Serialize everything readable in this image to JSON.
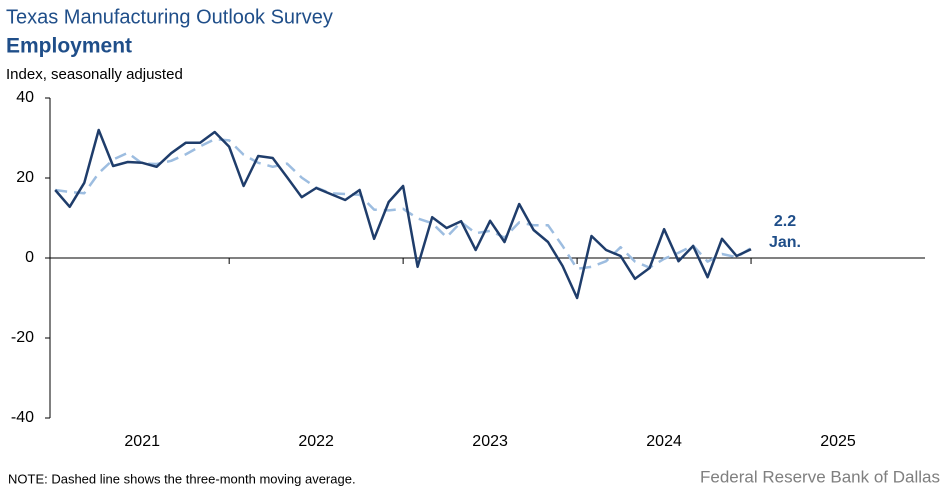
{
  "chart_data": {
    "type": "line",
    "title": "Texas Manufacturing Outlook Survey",
    "subtitle": "Employment",
    "y_label": "Index, seasonally adjusted",
    "note": "NOTE: Dashed line shows the three-month  moving average.",
    "source": "Federal Reserve Bank of Dallas",
    "annotations": [
      "2.2",
      "Jan."
    ],
    "x": [
      2021.0,
      2021.083,
      2021.167,
      2021.25,
      2021.333,
      2021.417,
      2021.5,
      2021.583,
      2021.667,
      2021.75,
      2021.833,
      2021.917,
      2022.0,
      2022.083,
      2022.167,
      2022.25,
      2022.333,
      2022.417,
      2022.5,
      2022.583,
      2022.667,
      2022.75,
      2022.833,
      2022.917,
      2023.0,
      2023.083,
      2023.167,
      2023.25,
      2023.333,
      2023.417,
      2023.5,
      2023.583,
      2023.667,
      2023.75,
      2023.833,
      2023.917,
      2024.0,
      2024.083,
      2024.167,
      2024.25,
      2024.333,
      2024.417,
      2024.5,
      2024.583,
      2024.667,
      2024.75,
      2024.833,
      2024.917,
      2025.0
    ],
    "series": [
      {
        "name": "Index",
        "color": "#1f3d6b",
        "dashed": false,
        "values": [
          17,
          12.8,
          18.8,
          32,
          23,
          24,
          23.8,
          22.8,
          26.2,
          28.8,
          28.8,
          31.5,
          27.8,
          18,
          25.5,
          25,
          20.2,
          15.2,
          17.5,
          16,
          14.5,
          17,
          4.8,
          14,
          18,
          -2.2,
          10.2,
          7.5,
          9.2,
          2,
          9.3,
          4,
          13.5,
          7,
          4,
          -2,
          -10,
          5.5,
          2,
          0.5,
          -5.2,
          -2.5,
          7.2,
          -0.8,
          3,
          -4.8,
          4.8,
          0.5,
          2.2
        ]
      },
      {
        "name": "Three-month moving average",
        "color": "#9dbde0",
        "dashed": true,
        "values": [
          17,
          16.5,
          16.2,
          21.2,
          24.6,
          26.3,
          23.6,
          23.5,
          24.3,
          25.9,
          27.9,
          29.7,
          29.4,
          25.8,
          23.8,
          22.8,
          23.6,
          20.1,
          17.6,
          16.2,
          16,
          15.8,
          12.1,
          11.9,
          12.3,
          9.9,
          8.7,
          5.2,
          9,
          6.2,
          6.8,
          5.1,
          8.9,
          8.2,
          8.2,
          3,
          -2.7,
          -2.2,
          -0.8,
          2.7,
          -0.9,
          -2.4,
          -0.2,
          1.3,
          3.1,
          -0.9,
          1,
          0.2,
          2.5
        ]
      }
    ],
    "xlim": [
      2020.97,
      2026.0
    ],
    "xticks": [
      {
        "value": 2021.5,
        "label": "2021"
      },
      {
        "value": 2022.5,
        "label": "2022"
      },
      {
        "value": 2023.5,
        "label": "2023"
      },
      {
        "value": 2024.5,
        "label": "2024"
      },
      {
        "value": 2025.5,
        "label": "2025"
      }
    ],
    "ylim": [
      -40,
      40
    ],
    "yticks": [
      -40,
      -20,
      0,
      20,
      40
    ],
    "grid": false
  }
}
